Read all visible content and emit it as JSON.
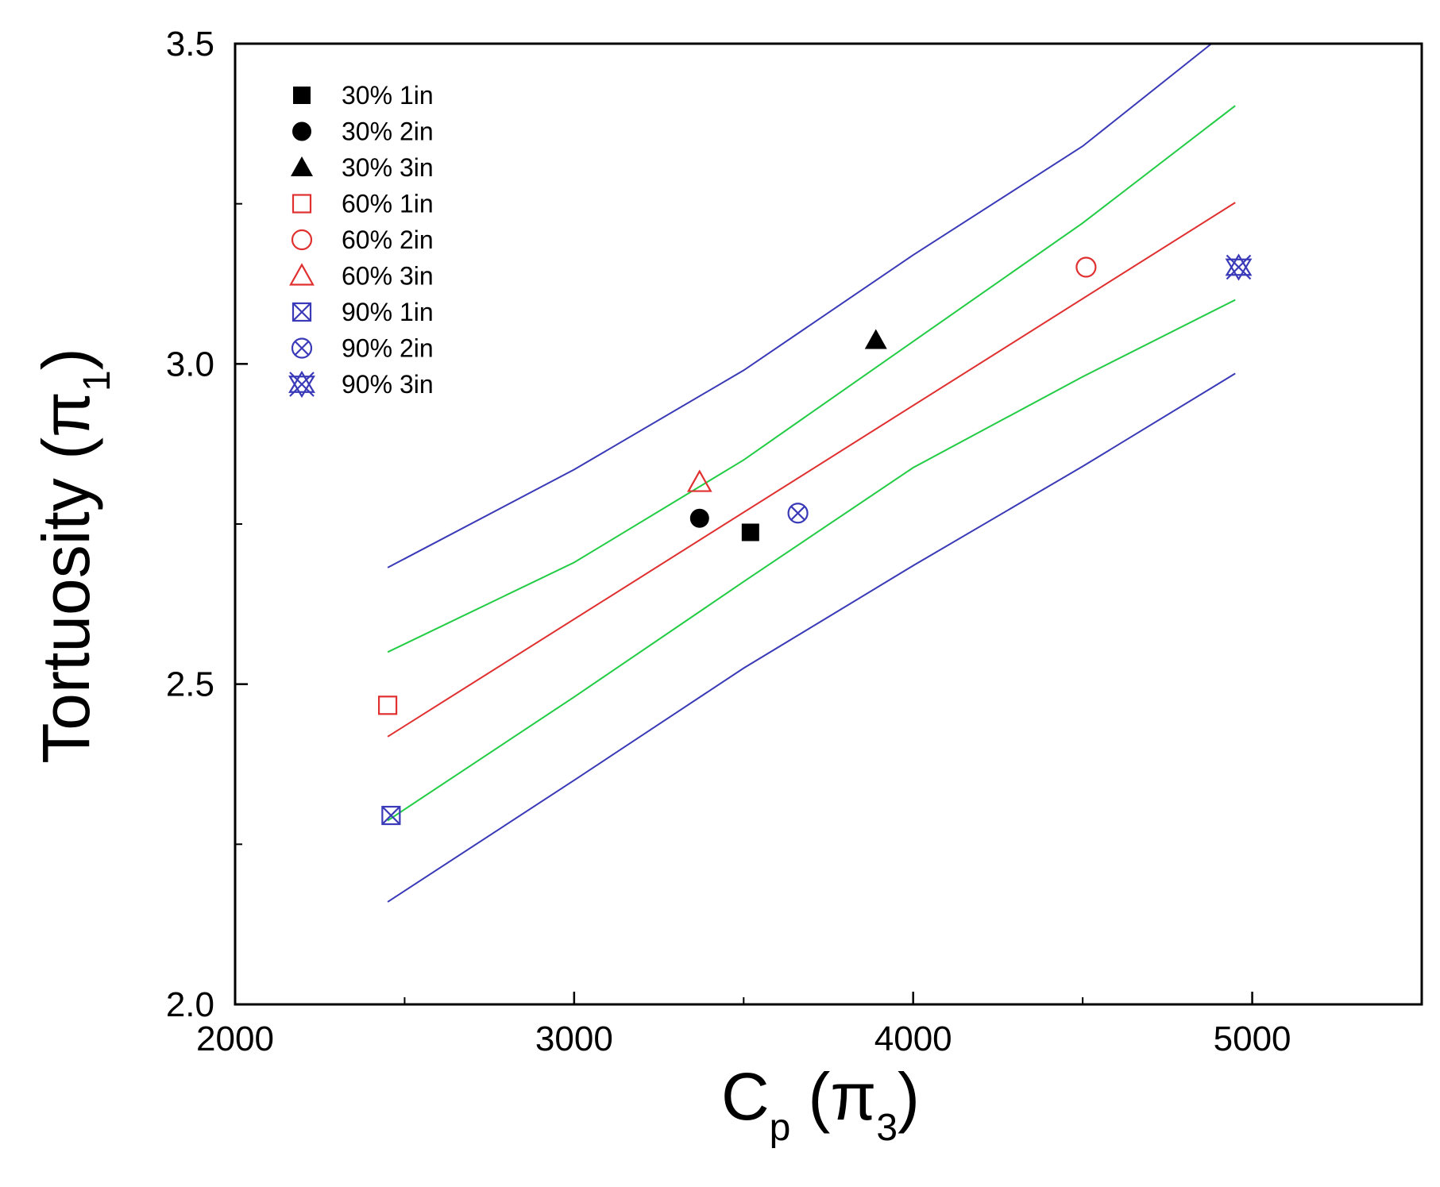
{
  "chart_data": {
    "type": "scatter",
    "title": "",
    "xlabel": "C",
    "xlabel_sub": "p",
    "xlabel_paren": "(π",
    "xlabel_paren_sub": "3",
    "ylabel": "Tortuosity (π",
    "ylabel_sub": "1",
    "xlim": [
      2000,
      5500
    ],
    "ylim": [
      2.0,
      3.5
    ],
    "x_ticks": [
      {
        "value": 2000,
        "label": "2000"
      },
      {
        "value": 3000,
        "label": "3000"
      },
      {
        "value": 4000,
        "label": "4000"
      },
      {
        "value": 5000,
        "label": "5000"
      }
    ],
    "x_minor_ticks": [
      2500,
      3500,
      4500
    ],
    "y_ticks": [
      {
        "value": 2.0,
        "label": "2.0"
      },
      {
        "value": 2.5,
        "label": "2.5"
      },
      {
        "value": 3.0,
        "label": "3.0"
      },
      {
        "value": 3.5,
        "label": "3.5"
      }
    ],
    "y_minor_ticks": [
      2.25,
      2.75,
      3.25
    ],
    "grid": false,
    "legend_position": "top-left",
    "series": [
      {
        "name": "30% 1in",
        "marker": "square-filled",
        "color": "#000000",
        "points": [
          [
            3520,
            2.737
          ]
        ]
      },
      {
        "name": "30% 2in",
        "marker": "circle-filled",
        "color": "#000000",
        "points": [
          [
            3370,
            2.759
          ]
        ]
      },
      {
        "name": "30% 3in",
        "marker": "triangle-filled",
        "color": "#000000",
        "points": [
          [
            3890,
            3.037
          ]
        ]
      },
      {
        "name": "60% 1in",
        "marker": "square-open",
        "color": "#e03030",
        "points": [
          [
            2450,
            2.467
          ]
        ]
      },
      {
        "name": "60% 2in",
        "marker": "circle-open",
        "color": "#e03030",
        "points": [
          [
            4510,
            3.151
          ]
        ]
      },
      {
        "name": "60% 3in",
        "marker": "triangle-open",
        "color": "#e03030",
        "points": [
          [
            3370,
            2.815
          ]
        ]
      },
      {
        "name": "90% 1in",
        "marker": "square-x",
        "color": "#3a3ab8",
        "points": [
          [
            2460,
            2.295
          ]
        ]
      },
      {
        "name": "90% 2in",
        "marker": "circle-x",
        "color": "#3a3ab8",
        "points": [
          [
            3660,
            2.767
          ]
        ]
      },
      {
        "name": "90% 3in",
        "marker": "star-x",
        "color": "#3a3ab8",
        "points": [
          [
            4960,
            3.151
          ]
        ]
      }
    ],
    "lines": [
      {
        "name": "fit",
        "color": "#e03030",
        "points": [
          [
            2450,
            2.418
          ],
          [
            4950,
            3.252
          ]
        ]
      },
      {
        "name": "confidence-upper",
        "color": "#22cc44",
        "points": [
          [
            2450,
            2.55
          ],
          [
            3000,
            2.69
          ],
          [
            3500,
            2.85
          ],
          [
            4000,
            3.035
          ],
          [
            4500,
            3.22
          ],
          [
            4950,
            3.403
          ]
        ]
      },
      {
        "name": "confidence-lower",
        "color": "#22cc44",
        "points": [
          [
            2450,
            2.287
          ],
          [
            3000,
            2.48
          ],
          [
            3500,
            2.66
          ],
          [
            4000,
            2.838
          ],
          [
            4500,
            2.98
          ],
          [
            4950,
            3.1
          ]
        ]
      },
      {
        "name": "prediction-upper",
        "color": "#3a3ab8",
        "points": [
          [
            2450,
            2.682
          ],
          [
            3000,
            2.835
          ],
          [
            3500,
            2.99
          ],
          [
            4000,
            3.17
          ],
          [
            4500,
            3.34
          ],
          [
            4880,
            3.5
          ]
        ]
      },
      {
        "name": "prediction-lower",
        "color": "#3a3ab8",
        "points": [
          [
            2450,
            2.16
          ],
          [
            3000,
            2.35
          ],
          [
            3500,
            2.525
          ],
          [
            4000,
            2.685
          ],
          [
            4500,
            2.84
          ],
          [
            4950,
            2.985
          ]
        ]
      }
    ]
  }
}
